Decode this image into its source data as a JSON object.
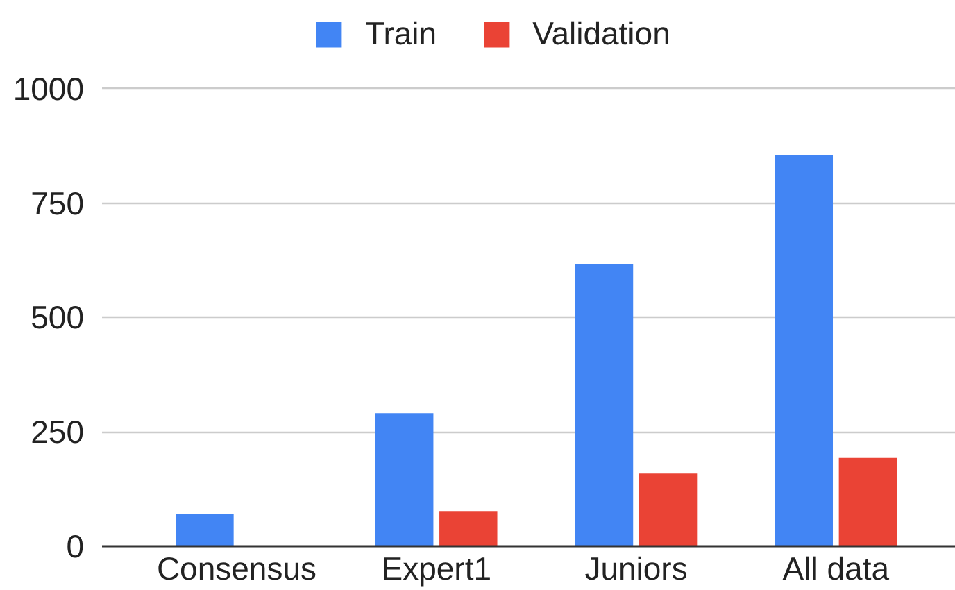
{
  "chart_data": {
    "type": "bar",
    "categories": [
      "Consensus",
      "Expert1",
      "Juniors",
      "All data"
    ],
    "series": [
      {
        "name": "Train",
        "color": "#4285f4",
        "values": [
          70,
          291,
          617,
          855
        ]
      },
      {
        "name": "Validation",
        "color": "#ea4335",
        "values": [
          null,
          77,
          159,
          193
        ]
      }
    ],
    "ylim": [
      0,
      1000
    ],
    "yticks": [
      0,
      250,
      500,
      750,
      1000
    ],
    "grid": "y",
    "legend": "top"
  }
}
